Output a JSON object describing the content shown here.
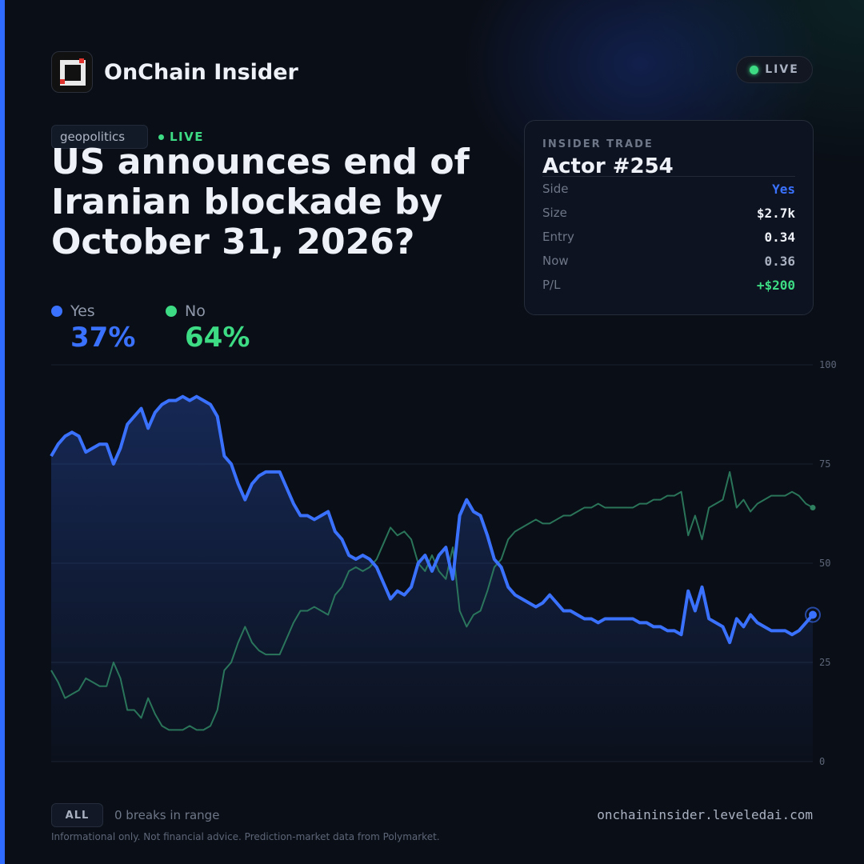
{
  "brand": {
    "name": "OnChain Insider",
    "status": "LIVE"
  },
  "market": {
    "category": "geopolitics",
    "status": "LIVE",
    "question": "US announces end of Iranian blockade by October 31, 2026?",
    "outcomes": [
      {
        "label": "Yes",
        "value": "37%",
        "color": "#3a72ff"
      },
      {
        "label": "No",
        "value": "64%",
        "color": "#3ddc84"
      }
    ]
  },
  "trade": {
    "kicker": "INSIDER TRADE",
    "actor": "Actor #254",
    "rows": [
      {
        "key": "Side",
        "value": "Yes",
        "color": "#3a72ff"
      },
      {
        "key": "Size",
        "value": "$2.7k",
        "color": "#eef1f7"
      },
      {
        "key": "Entry",
        "value": "0.34",
        "color": "#eef1f7"
      },
      {
        "key": "Now",
        "value": "0.36",
        "color": "#aab2c2"
      },
      {
        "key": "P/L",
        "value": "+$200",
        "color": "#3ddc84"
      }
    ]
  },
  "chart_data": {
    "type": "line",
    "ylim": [
      0,
      100
    ],
    "yticks": [
      "100",
      "75",
      "50",
      "25",
      "0"
    ],
    "series": [
      {
        "name": "Yes",
        "color": "#3a72ff",
        "values": [
          77,
          80,
          82,
          83,
          82,
          78,
          79,
          80,
          80,
          75,
          79,
          85,
          87,
          89,
          84,
          88,
          90,
          91,
          91,
          92,
          91,
          92,
          91,
          90,
          87,
          77,
          75,
          70,
          66,
          70,
          72,
          73,
          73,
          73,
          69,
          65,
          62,
          62,
          61,
          62,
          63,
          58,
          56,
          52,
          51,
          52,
          51,
          49,
          45,
          41,
          43,
          42,
          44,
          50,
          52,
          48,
          52,
          54,
          46,
          62,
          66,
          63,
          62,
          57,
          51,
          49,
          44,
          42,
          41,
          40,
          39,
          40,
          42,
          40,
          38,
          38,
          37,
          36,
          36,
          35,
          36,
          36,
          36,
          36,
          36,
          35,
          35,
          34,
          34,
          33,
          33,
          32,
          43,
          38,
          44,
          36,
          35,
          34,
          30,
          36,
          34,
          37,
          35,
          34,
          33,
          33,
          33,
          32,
          33,
          35,
          37
        ]
      },
      {
        "name": "No",
        "color": "#2e8060",
        "values": [
          23,
          20,
          16,
          17,
          18,
          21,
          20,
          19,
          19,
          25,
          21,
          13,
          13,
          11,
          16,
          12,
          9,
          8,
          8,
          8,
          9,
          8,
          8,
          9,
          13,
          23,
          25,
          30,
          34,
          30,
          28,
          27,
          27,
          27,
          31,
          35,
          38,
          38,
          39,
          38,
          37,
          42,
          44,
          48,
          49,
          48,
          49,
          51,
          55,
          59,
          57,
          58,
          56,
          50,
          48,
          52,
          48,
          46,
          54,
          38,
          34,
          37,
          38,
          43,
          49,
          51,
          56,
          58,
          59,
          60,
          61,
          60,
          60,
          61,
          62,
          62,
          63,
          64,
          64,
          65,
          64,
          64,
          64,
          64,
          64,
          65,
          65,
          66,
          66,
          67,
          67,
          68,
          57,
          62,
          56,
          64,
          65,
          66,
          73,
          64,
          66,
          63,
          65,
          66,
          67,
          67,
          67,
          68,
          67,
          65,
          64
        ]
      }
    ]
  },
  "footer": {
    "range_button": "ALL",
    "breaks": "0 breaks in range",
    "site": "onchaininsider.leveledai.com",
    "disclaimer": "Informational only. Not financial advice. Prediction-market data from Polymarket."
  }
}
